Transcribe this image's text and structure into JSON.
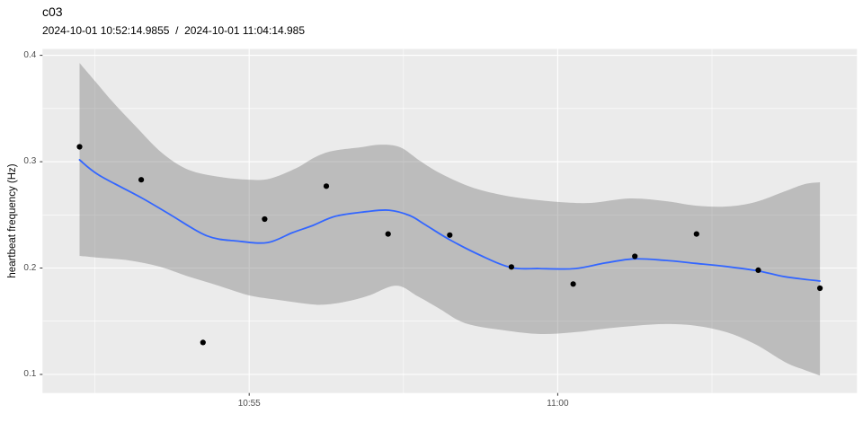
{
  "chart_data": {
    "type": "scatter",
    "title": "c03",
    "subtitle": "2024-10-01 10:52:14.9855  /  2024-10-01 11:04:14.985",
    "xlabel": "",
    "ylabel": "heartbeat frequency (Hz)",
    "x_unit": "seconds since 10:52:15",
    "legend": "none",
    "grid": "on",
    "x_axis": {
      "range_t": [
        -36,
        756
      ],
      "major_ticks": [
        {
          "label": "10:55",
          "t": 165
        },
        {
          "label": "11:00",
          "t": 465
        }
      ],
      "minor_ticks_t": [
        15,
        315,
        615
      ]
    },
    "y_axis": {
      "range_v": [
        0.0825,
        0.406
      ],
      "major_ticks": [
        {
          "label": "0.1",
          "v": 0.1
        },
        {
          "label": "0.2",
          "v": 0.2
        },
        {
          "label": "0.3",
          "v": 0.3
        },
        {
          "label": "0.4",
          "v": 0.4
        }
      ],
      "minor_ticks_v": [
        0.15,
        0.25,
        0.35
      ]
    },
    "points": [
      {
        "time": "10:52:15",
        "t": 0,
        "hz": 0.314
      },
      {
        "time": "10:53:15",
        "t": 60,
        "hz": 0.283
      },
      {
        "time": "10:54:15",
        "t": 120,
        "hz": 0.13
      },
      {
        "time": "10:55:15",
        "t": 180,
        "hz": 0.246
      },
      {
        "time": "10:56:15",
        "t": 240,
        "hz": 0.277
      },
      {
        "time": "10:57:15",
        "t": 300,
        "hz": 0.232
      },
      {
        "time": "10:58:15",
        "t": 360,
        "hz": 0.231
      },
      {
        "time": "10:59:15",
        "t": 420,
        "hz": 0.201
      },
      {
        "time": "11:00:15",
        "t": 480,
        "hz": 0.185
      },
      {
        "time": "11:01:15",
        "t": 540,
        "hz": 0.211
      },
      {
        "time": "11:02:15",
        "t": 600,
        "hz": 0.232
      },
      {
        "time": "11:03:15",
        "t": 660,
        "hz": 0.198
      },
      {
        "time": "11:04:15",
        "t": 720,
        "hz": 0.181
      }
    ],
    "smooth_line": [
      [
        0,
        0.3017
      ],
      [
        19,
        0.2873
      ],
      [
        60,
        0.2662
      ],
      [
        89,
        0.2497
      ],
      [
        124,
        0.2302
      ],
      [
        154,
        0.2253
      ],
      [
        183,
        0.224
      ],
      [
        207,
        0.2333
      ],
      [
        226,
        0.2397
      ],
      [
        249,
        0.2487
      ],
      [
        279,
        0.253
      ],
      [
        301,
        0.2544
      ],
      [
        321,
        0.2494
      ],
      [
        336,
        0.2409
      ],
      [
        360,
        0.2266
      ],
      [
        391,
        0.2114
      ],
      [
        420,
        0.2004
      ],
      [
        447,
        0.1995
      ],
      [
        482,
        0.1995
      ],
      [
        511,
        0.2047
      ],
      [
        539,
        0.2086
      ],
      [
        570,
        0.2072
      ],
      [
        599,
        0.2044
      ],
      [
        628,
        0.2015
      ],
      [
        660,
        0.1973
      ],
      [
        686,
        0.1918
      ],
      [
        720,
        0.1878
      ]
    ],
    "ribbon_upper": [
      [
        0,
        0.3928
      ],
      [
        15,
        0.3759
      ],
      [
        32,
        0.3565
      ],
      [
        54,
        0.3338
      ],
      [
        80,
        0.3084
      ],
      [
        106,
        0.2924
      ],
      [
        137,
        0.2856
      ],
      [
        165,
        0.2831
      ],
      [
        185,
        0.284
      ],
      [
        211,
        0.2941
      ],
      [
        229,
        0.3042
      ],
      [
        246,
        0.3101
      ],
      [
        273,
        0.3135
      ],
      [
        293,
        0.316
      ],
      [
        312,
        0.3135
      ],
      [
        331,
        0.3008
      ],
      [
        351,
        0.289
      ],
      [
        380,
        0.2764
      ],
      [
        410,
        0.2688
      ],
      [
        439,
        0.2646
      ],
      [
        468,
        0.262
      ],
      [
        497,
        0.2612
      ],
      [
        535,
        0.2654
      ],
      [
        570,
        0.2629
      ],
      [
        599,
        0.2587
      ],
      [
        629,
        0.2578
      ],
      [
        657,
        0.262
      ],
      [
        686,
        0.2722
      ],
      [
        705,
        0.2789
      ],
      [
        720,
        0.2806
      ]
    ],
    "ribbon_lower": [
      [
        0,
        0.2114
      ],
      [
        19,
        0.2097
      ],
      [
        48,
        0.2072
      ],
      [
        78,
        0.2013
      ],
      [
        106,
        0.192
      ],
      [
        135,
        0.1835
      ],
      [
        165,
        0.1743
      ],
      [
        194,
        0.17
      ],
      [
        223,
        0.1662
      ],
      [
        238,
        0.1656
      ],
      [
        259,
        0.1684
      ],
      [
        281,
        0.174
      ],
      [
        308,
        0.1835
      ],
      [
        329,
        0.1734
      ],
      [
        349,
        0.1624
      ],
      [
        375,
        0.1481
      ],
      [
        413,
        0.1414
      ],
      [
        448,
        0.138
      ],
      [
        482,
        0.1397
      ],
      [
        511,
        0.143
      ],
      [
        541,
        0.1458
      ],
      [
        570,
        0.1473
      ],
      [
        599,
        0.1458
      ],
      [
        629,
        0.1397
      ],
      [
        657,
        0.1284
      ],
      [
        686,
        0.1116
      ],
      [
        705,
        0.1042
      ],
      [
        720,
        0.0989
      ]
    ]
  },
  "style": {
    "panel_bg": "#EBEBEB",
    "grid_color": "#FFFFFF",
    "ribbon_color": "#7D7D7D",
    "ribbon_opacity": 0.42,
    "line_color": "#3366FF",
    "point_color": "#000000",
    "tick_label_color": "#4D4D4D",
    "tick_mark_color": "#333333",
    "text_color": "#000000"
  }
}
